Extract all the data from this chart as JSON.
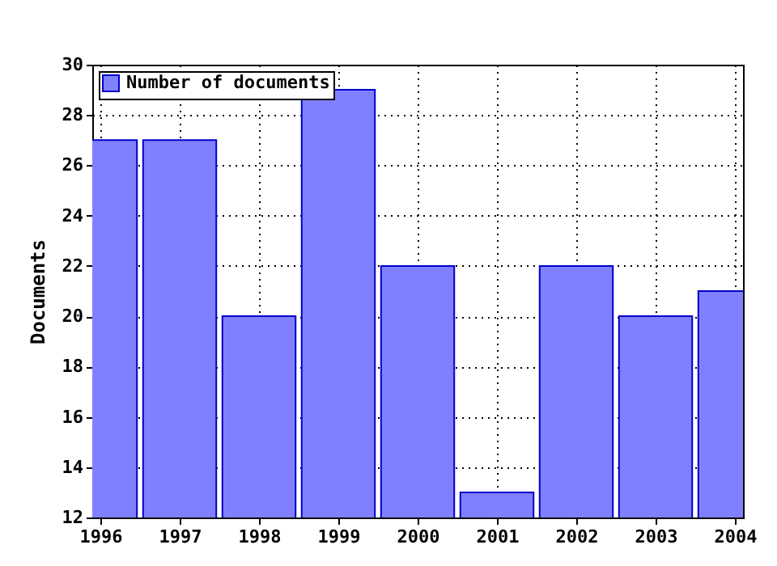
{
  "chart_data": {
    "type": "bar",
    "ylabel": "Documents",
    "x": [
      1996,
      1997,
      1998,
      1999,
      2000,
      2001,
      2002,
      2003,
      2004
    ],
    "series": [
      {
        "name": "Number of documents",
        "color": "#8080ff",
        "values": [
          27,
          27,
          20,
          29,
          22,
          13,
          22,
          20,
          21
        ]
      }
    ],
    "xlim": [
      1996,
      2004
    ],
    "xticks": [
      1996,
      1997,
      1998,
      1999,
      2000,
      2001,
      2002,
      2003,
      2004
    ],
    "ylim": [
      12,
      30
    ],
    "yticks": [
      12,
      14,
      16,
      18,
      20,
      22,
      24,
      26,
      28,
      30
    ],
    "grid": true,
    "legend": "top left"
  }
}
